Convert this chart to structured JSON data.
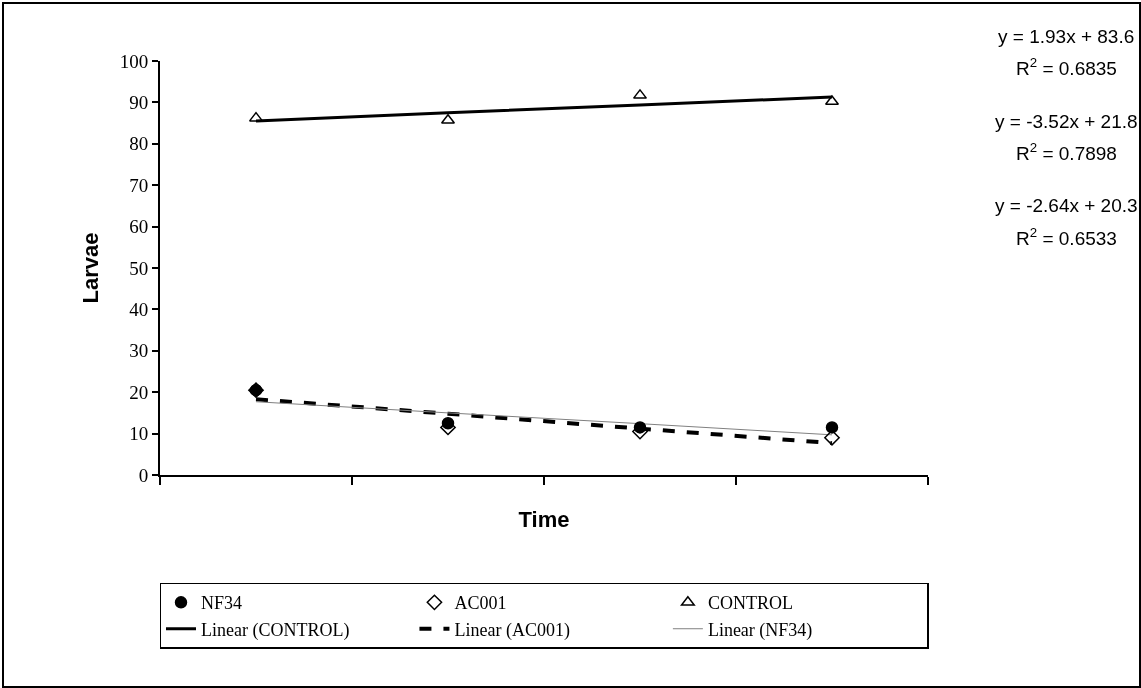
{
  "chart_data": {
    "type": "scatter",
    "ylabel": "Larvae",
    "xlabel": "Time",
    "categories": [
      null,
      null,
      null,
      null
    ],
    "ylim": [
      0,
      100
    ],
    "yticks": [
      0,
      10,
      20,
      30,
      40,
      50,
      60,
      70,
      80,
      90,
      100
    ],
    "tick_labels": "y",
    "grid": false,
    "legend": "bottom",
    "series": [
      {
        "name": "NF34",
        "color": "#000000",
        "marker": "circle",
        "values": [
          20.5,
          12.5,
          11.5,
          11.5
        ]
      },
      {
        "name": "AC001",
        "color": "#000000",
        "marker": "diamond",
        "values": [
          20.5,
          11.5,
          10.5,
          9
        ]
      },
      {
        "name": "CONTROL",
        "color": "#000000",
        "marker": "triangle",
        "values": [
          86.2,
          85.7,
          91.7,
          90.2
        ]
      },
      {
        "name": "Linear (CONTROL)",
        "type": "line",
        "color": "#000000",
        "line_style": "solid",
        "marker": "none",
        "values": [
          85.5,
          87.5,
          89.4,
          91.3
        ]
      },
      {
        "name": "Linear (AC001)",
        "type": "line",
        "color": "#000000",
        "line_style": "dashed",
        "marker": "none",
        "values": [
          18.3,
          14.8,
          11.2,
          7.7
        ]
      },
      {
        "name": "Linear (NF34)",
        "type": "line",
        "color": "#808080",
        "line_style": "solid",
        "marker": "none",
        "values": [
          17.7,
          15,
          12.4,
          9.7
        ]
      }
    ],
    "annotations": [
      "y = 1.93x + 83.6",
      "R$^{2}$ = 0.6835",
      "y = -3.52x + 21.8",
      "R$^{2}$ = 0.7898",
      "y = -2.64x + 20.3",
      "R$^{2}$ = 0.6533"
    ]
  }
}
